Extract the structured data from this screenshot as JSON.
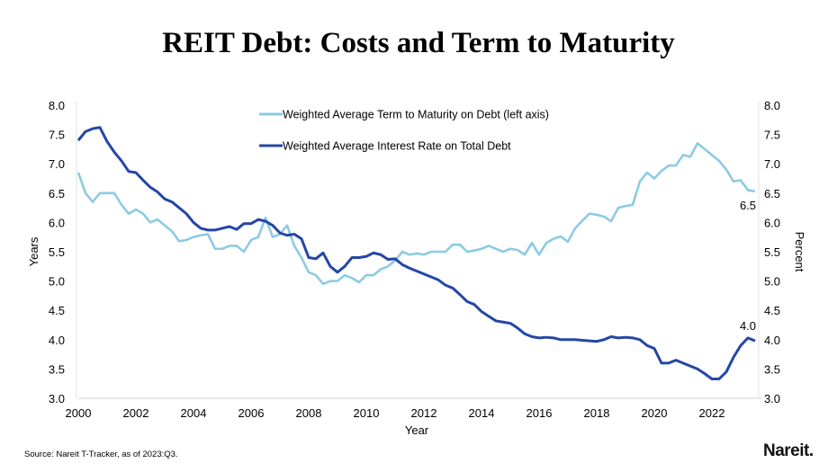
{
  "title": "REIT Debt: Costs and Term to Maturity",
  "source": "Source: Nareit T-Tracker, as of 2023:Q3.",
  "logo": "Nareit.",
  "chart_data": {
    "type": "line",
    "title": "REIT Debt: Costs and Term to Maturity",
    "xlabel": "Year",
    "ylabel": "Years",
    "y2label": "Percent",
    "xlim": [
      2000,
      2023.75
    ],
    "ylim": [
      3.0,
      8.0
    ],
    "y2lim": [
      3.0,
      8.0
    ],
    "x_ticks": [
      "2000",
      "2002",
      "2004",
      "2006",
      "2008",
      "2010",
      "2012",
      "2014",
      "2016",
      "2018",
      "2020",
      "2022"
    ],
    "y_ticks": [
      "3.0",
      "3.5",
      "4.0",
      "4.5",
      "5.0",
      "5.5",
      "6.0",
      "6.5",
      "7.0",
      "7.5",
      "8.0"
    ],
    "grid": false,
    "legend_position": "top-center",
    "x_start": "2000:Q1",
    "x_end": "2023:Q3",
    "series": [
      {
        "name": "Weighted Average Term to Maturity on Debt (left axis)",
        "color": "#8ccbe3",
        "end_label": "6.5",
        "values": [
          6.85,
          6.5,
          6.35,
          6.5,
          6.5,
          6.5,
          6.3,
          6.15,
          6.22,
          6.15,
          6.0,
          6.05,
          5.95,
          5.85,
          5.68,
          5.7,
          5.75,
          5.78,
          5.8,
          5.55,
          5.55,
          5.6,
          5.6,
          5.5,
          5.7,
          5.75,
          6.08,
          5.75,
          5.8,
          5.95,
          5.6,
          5.4,
          5.15,
          5.1,
          4.95,
          5.0,
          5.0,
          5.1,
          5.05,
          4.98,
          5.1,
          5.1,
          5.2,
          5.25,
          5.35,
          5.5,
          5.45,
          5.47,
          5.45,
          5.5,
          5.5,
          5.5,
          5.62,
          5.62,
          5.5,
          5.52,
          5.55,
          5.6,
          5.55,
          5.5,
          5.55,
          5.53,
          5.45,
          5.65,
          5.45,
          5.65,
          5.72,
          5.76,
          5.67,
          5.9,
          6.03,
          6.15,
          6.13,
          6.1,
          6.02,
          6.25,
          6.28,
          6.3,
          6.7,
          6.85,
          6.75,
          6.88,
          6.97,
          6.97,
          7.15,
          7.12,
          7.35,
          7.25,
          7.15,
          7.05,
          6.9,
          6.7,
          6.72,
          6.55,
          6.53
        ]
      },
      {
        "name": "Weighted Average Interest Rate on Total Debt",
        "color": "#2446a6",
        "end_label": "4.0",
        "values": [
          7.4,
          7.55,
          7.6,
          7.62,
          7.38,
          7.2,
          7.05,
          6.87,
          6.85,
          6.72,
          6.6,
          6.52,
          6.4,
          6.35,
          6.25,
          6.15,
          6.0,
          5.9,
          5.87,
          5.87,
          5.9,
          5.93,
          5.88,
          5.98,
          5.98,
          6.05,
          6.02,
          5.95,
          5.82,
          5.78,
          5.8,
          5.72,
          5.4,
          5.38,
          5.48,
          5.25,
          5.15,
          5.25,
          5.4,
          5.4,
          5.42,
          5.48,
          5.45,
          5.37,
          5.38,
          5.28,
          5.22,
          5.17,
          5.12,
          5.07,
          5.02,
          4.93,
          4.88,
          4.77,
          4.65,
          4.6,
          4.48,
          4.4,
          4.32,
          4.3,
          4.28,
          4.2,
          4.1,
          4.05,
          4.03,
          4.04,
          4.03,
          4.0,
          4.0,
          4.0,
          3.99,
          3.98,
          3.97,
          4.0,
          4.05,
          4.03,
          4.04,
          4.03,
          4.0,
          3.9,
          3.85,
          3.6,
          3.6,
          3.65,
          3.6,
          3.55,
          3.5,
          3.42,
          3.33,
          3.33,
          3.45,
          3.7,
          3.9,
          4.03,
          3.98
        ]
      }
    ]
  }
}
